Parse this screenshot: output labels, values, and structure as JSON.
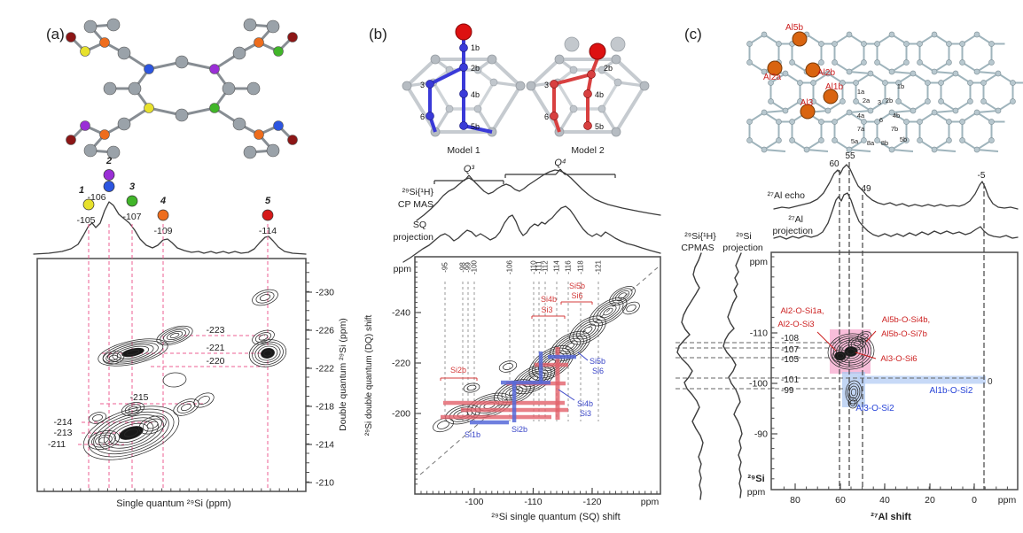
{
  "a": {
    "tag": "(a)",
    "peaks": [
      {
        "id": "1",
        "shift": "-105",
        "colors": [
          "#e7e12c"
        ]
      },
      {
        "id": "2",
        "shift": "-106",
        "colors": [
          "#9a2fd6",
          "#2c55e0"
        ]
      },
      {
        "id": "3",
        "shift": "-107",
        "colors": [
          "#41b529"
        ]
      },
      {
        "id": "4",
        "shift": "-109",
        "colors": [
          "#ee6d1d"
        ]
      },
      {
        "id": "5",
        "shift": "-114",
        "colors": [
          "#d61a1a"
        ]
      }
    ],
    "dq_line_labels": [
      "-223",
      "-221",
      "-220",
      "-215",
      "-214",
      "-213",
      "-211"
    ],
    "y_ticks": [
      "-230",
      "-226",
      "-222",
      "-218",
      "-214",
      "-210"
    ],
    "y_axis_label": "Double quantum ²⁹Si (ppm)",
    "x_axis_label": "Single quantum ²⁹Si (ppm)"
  },
  "b": {
    "tag": "(b)",
    "model1": {
      "name": "Model 1",
      "site_labels": [
        "1b",
        "2b",
        "3",
        "4b",
        "6",
        "5b"
      ]
    },
    "model2": {
      "name": "Model 2",
      "site_labels": [
        "2b",
        "3",
        "4b",
        "6",
        "5b"
      ]
    },
    "q3": "Q³",
    "q4": "Q⁴",
    "cpmas_label_1": "²⁹Si{¹H}",
    "cpmas_label_2": "CP MAS",
    "sq_label_1": "SQ",
    "sq_label_2": "projection",
    "ppm": "ppm",
    "sq_dash_labels": [
      "-95",
      "-98",
      "-99",
      "-100",
      "-106",
      "-110",
      "-111",
      "-112",
      "-114",
      "-116",
      "-118",
      "-121"
    ],
    "y_ticks": [
      "-240",
      "-220",
      "-200"
    ],
    "x_ticks": [
      "-100",
      "-110",
      "-120"
    ],
    "y_axis_label": "²⁹Si double quantum (DQ) shift",
    "x_axis_label": "²⁹Si single quantum (SQ) shift",
    "red_pairs": {
      "si2b": "Si2b",
      "si4b": "Si4b",
      "si3": "Si3",
      "si5b": "Si5b",
      "si6": "Si6"
    },
    "blue_pairs": {
      "si1b": "Si1b",
      "si2b": "Si2b",
      "si4b": "Si4b",
      "si3": "Si3",
      "si5b": "Si5b",
      "si6": "Si6"
    }
  },
  "c": {
    "tag": "(c)",
    "al_sites": [
      "Al5b",
      "Al2a",
      "Al2b",
      "Al1b",
      "Al3"
    ],
    "si_sites": [
      "1a",
      "2a",
      "3",
      "2b",
      "1b",
      "4a",
      "6",
      "4b",
      "7a",
      "7b",
      "5a",
      "8a",
      "8b",
      "5b"
    ],
    "echo_label": "²⁷Al echo",
    "proj_label_1": "²⁷Al",
    "proj_label_2": "projection",
    "cpmas_label_1": "²⁹Si{¹H}",
    "cpmas_label_2": "CPMAS",
    "siproj_label_1": "²⁹Si",
    "siproj_label_2": "projection",
    "al_peaks": [
      "60",
      "55",
      "49",
      "-5"
    ],
    "si_dash_labels": [
      "-108",
      "-107",
      "-105",
      "-101",
      "-99"
    ],
    "y_ticks": [
      "-110",
      "-100",
      "-90"
    ],
    "x_ticks": [
      "80",
      "60",
      "40",
      "20",
      "0"
    ],
    "ppm": "ppm",
    "si_bold": "²⁹Si",
    "x_axis_label": "²⁷Al shift",
    "red_assign": {
      "l1": "Al2-O-Si1a,",
      "l2": "Al2-O-Si3",
      "l3": "Al5b-O-Si4b,",
      "l4": "Al5b-O-Si7b",
      "l5": "Al3-O-Si6"
    },
    "blue_assign": {
      "l1": "Al1b-O-Si2",
      "l2": "Al3-O-Si2"
    },
    "zero": "0"
  }
}
